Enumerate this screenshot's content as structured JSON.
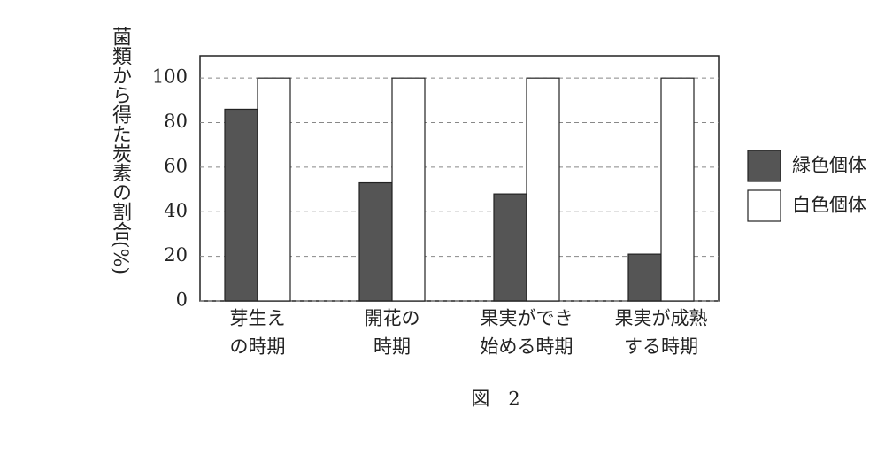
{
  "chart_data": {
    "type": "bar",
    "y_label": "菌類から得た炭素の割合(%)",
    "caption": "図　2",
    "categories": [
      [
        "芽生え",
        "の時期"
      ],
      [
        "開花の",
        "時期"
      ],
      [
        "果実ができ",
        "始める時期"
      ],
      [
        "果実が成熟",
        "する時期"
      ]
    ],
    "series": [
      {
        "name": "緑色個体",
        "color": "#555555",
        "values": [
          86,
          53,
          48,
          21
        ]
      },
      {
        "name": "白色個体",
        "color": "#ffffff",
        "values": [
          100,
          100,
          100,
          100
        ]
      }
    ],
    "ylim": [
      0,
      110
    ],
    "yticks": [
      0,
      20,
      40,
      60,
      80,
      100
    ],
    "grid": true,
    "legend": "right"
  }
}
